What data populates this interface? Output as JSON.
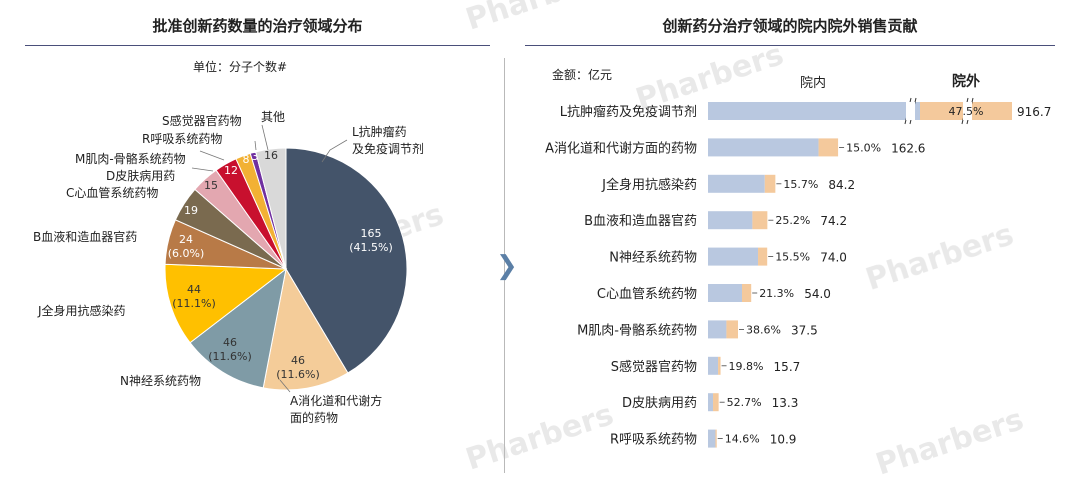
{
  "left_panel": {
    "title": "批准创新药数量的治疗领域分布",
    "unit": "单位：分子个数#"
  },
  "right_panel": {
    "title": "创新药分治疗领域的院内院外销售贡献",
    "amount_unit": "金额：亿元",
    "col_inhospital": "院内",
    "col_outhospital": "院外"
  },
  "watermark": "Pharbers",
  "colors": {
    "inhospital": "#b9c8e0",
    "outhospital": "#f4c99c",
    "title_rule": "#4a4f7a",
    "arrow": "#5b7fa6"
  },
  "chart_data": [
    {
      "type": "pie",
      "title": "批准创新药数量的治疗领域分布",
      "unit": "分子个数#",
      "slices": [
        {
          "label": "L抗肿瘤药及免疫调节剂",
          "value": 165,
          "pct": "(41.5%)",
          "color": "#44546a"
        },
        {
          "label": "A消化道和代谢方面的药物",
          "value": 46,
          "pct": "(11.6%)",
          "color": "#f4cc99"
        },
        {
          "label": "N神经系统药物",
          "value": 46,
          "pct": "(11.6%)",
          "color": "#7f9ba6"
        },
        {
          "label": "J全身用抗感染药",
          "value": 44,
          "pct": "(11.1%)",
          "color": "#ffc000"
        },
        {
          "label": "B血液和造血器官药",
          "value": 24,
          "pct": "(6.0%)",
          "color": "#b87a47"
        },
        {
          "label": "C心血管系统药物",
          "value": 19,
          "pct": "",
          "color": "#7a6a4f"
        },
        {
          "label": "D皮肤病用药",
          "value": 15,
          "pct": "",
          "color": "#e3a7b0"
        },
        {
          "label": "M肌肉-骨骼系统药物",
          "value": 12,
          "pct": "",
          "color": "#c8102e"
        },
        {
          "label": "R呼吸系统药物",
          "value": 8,
          "pct": "",
          "color": "#f2b134"
        },
        {
          "label": "S感觉器官药物",
          "value": 3,
          "pct": "",
          "color": "#7030a0"
        },
        {
          "label": "其他",
          "value": 16,
          "pct": "",
          "color": "#d9d9d9"
        }
      ]
    },
    {
      "type": "bar",
      "orientation": "horizontal-stacked",
      "title": "创新药分治疗领域的院内院外销售贡献",
      "unit": "亿元",
      "series": [
        "院内",
        "院外"
      ],
      "axis_break_on_first_bar": true,
      "rows": [
        {
          "label": "L抗肿瘤药及免疫调节剂",
          "total": "916.7",
          "out_pct": "47.5%",
          "out_share": 0.475
        },
        {
          "label": "A消化道和代谢方面的药物",
          "total": "162.6",
          "out_pct": "15.0%",
          "out_share": 0.15
        },
        {
          "label": "J全身用抗感染药",
          "total": "84.2",
          "out_pct": "15.7%",
          "out_share": 0.157
        },
        {
          "label": "B血液和造血器官药",
          "total": "74.2",
          "out_pct": "25.2%",
          "out_share": 0.252
        },
        {
          "label": "N神经系统药物",
          "total": "74.0",
          "out_pct": "15.5%",
          "out_share": 0.155
        },
        {
          "label": "C心血管系统药物",
          "total": "54.0",
          "out_pct": "21.3%",
          "out_share": 0.213
        },
        {
          "label": "M肌肉-骨骼系统药物",
          "total": "37.5",
          "out_pct": "38.6%",
          "out_share": 0.386
        },
        {
          "label": "S感觉器官药物",
          "total": "15.7",
          "out_pct": "19.8%",
          "out_share": 0.198
        },
        {
          "label": "D皮肤病用药",
          "total": "13.3",
          "out_pct": "52.7%",
          "out_share": 0.527
        },
        {
          "label": "R呼吸系统药物",
          "total": "10.9",
          "out_pct": "14.6%",
          "out_share": 0.146
        }
      ]
    }
  ]
}
